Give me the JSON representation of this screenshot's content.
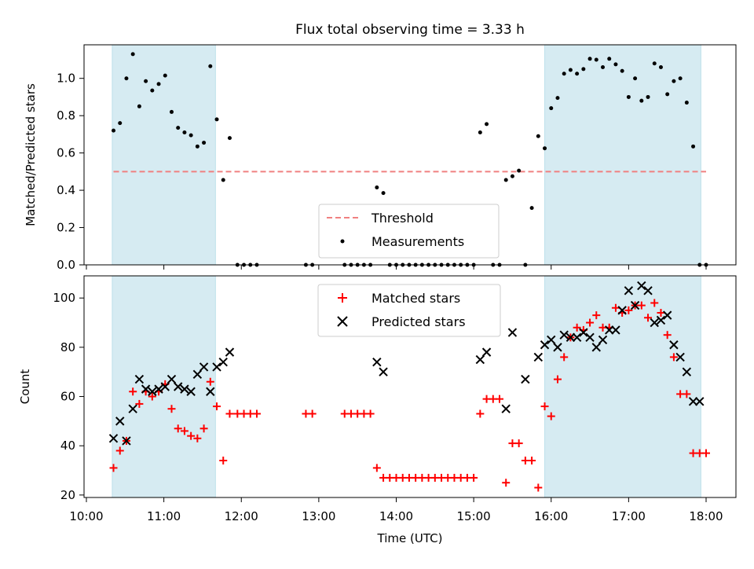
{
  "title": "Flux total observing time = 3.33 h",
  "colors": {
    "shade": "#add8e6",
    "threshold": "#f08080",
    "measurement": "#000000",
    "matched": "#ff0000",
    "predicted": "#000000"
  },
  "chart_data": [
    {
      "type": "scatter",
      "ylabel": "Matched/Predicted stars",
      "ylim": [
        0,
        1.18
      ],
      "yticks": [
        "0.0",
        "0.2",
        "0.4",
        "0.6",
        "0.8",
        "1.0"
      ],
      "legend_placement": "lower-center",
      "threshold": {
        "name": "Threshold",
        "value": 0.5
      },
      "shaded_regions": [
        [
          "10:20",
          "11:40"
        ],
        [
          "15:55",
          "17:56"
        ]
      ],
      "series": [
        {
          "name": "Measurements",
          "x": [
            "10:21",
            "10:26",
            "10:31",
            "10:36",
            "10:41",
            "10:46",
            "10:51",
            "10:56",
            "11:01",
            "11:06",
            "11:11",
            "11:16",
            "11:21",
            "11:26",
            "11:31",
            "11:36",
            "11:41",
            "11:46",
            "11:51",
            "11:57",
            "12:02",
            "12:07",
            "12:12",
            "12:50",
            "12:55",
            "13:20",
            "13:25",
            "13:30",
            "13:35",
            "13:40",
            "13:45",
            "13:50",
            "13:55",
            "14:00",
            "14:05",
            "14:10",
            "14:15",
            "14:20",
            "14:25",
            "14:30",
            "14:35",
            "14:40",
            "14:45",
            "14:50",
            "14:55",
            "15:00",
            "15:05",
            "15:10",
            "15:15",
            "15:20",
            "15:25",
            "15:30",
            "15:35",
            "15:40",
            "15:45",
            "15:50",
            "15:55",
            "16:00",
            "16:05",
            "16:10",
            "16:15",
            "16:20",
            "16:25",
            "16:30",
            "16:35",
            "16:40",
            "16:45",
            "16:50",
            "16:55",
            "17:00",
            "17:05",
            "17:10",
            "17:15",
            "17:20",
            "17:25",
            "17:30",
            "17:35",
            "17:40",
            "17:45",
            "17:50",
            "17:55",
            "18:00"
          ],
          "y": [
            0.72,
            0.76,
            1.0,
            1.13,
            0.85,
            0.985,
            0.935,
            0.97,
            1.015,
            0.82,
            0.735,
            0.71,
            0.695,
            0.635,
            0.655,
            1.065,
            0.78,
            0.455,
            0.68,
            0,
            0,
            0,
            0,
            0,
            0,
            0,
            0,
            0,
            0,
            0,
            0.415,
            0.385,
            0,
            0,
            0,
            0,
            0,
            0,
            0,
            0,
            0,
            0,
            0,
            0,
            0,
            0,
            0.71,
            0.755,
            0,
            0,
            0.455,
            0.475,
            0.505,
            0,
            0.305,
            0.69,
            0.625,
            0.84,
            0.895,
            1.025,
            1.045,
            1.025,
            1.05,
            1.105,
            1.1,
            1.06,
            1.105,
            1.075,
            1.04,
            0.9,
            1.0,
            0.88,
            0.9,
            1.08,
            1.06,
            0.915,
            0.985,
            1.0,
            0.87,
            0.635,
            0.0,
            0.0
          ]
        }
      ]
    },
    {
      "type": "scatter",
      "ylabel": "Count",
      "xlabel": "Time (UTC)",
      "ylim": [
        19,
        109
      ],
      "yticks": [
        "20",
        "40",
        "60",
        "80",
        "100"
      ],
      "xticks": [
        "10:00",
        "11:00",
        "12:00",
        "13:00",
        "14:00",
        "15:00",
        "16:00",
        "17:00",
        "18:00"
      ],
      "legend_placement": "upper-center",
      "shaded_regions": [
        [
          "10:20",
          "11:40"
        ],
        [
          "15:55",
          "17:56"
        ]
      ],
      "series": [
        {
          "name": "Matched stars",
          "marker": "plus",
          "x": [
            "10:21",
            "10:26",
            "10:31",
            "10:36",
            "10:41",
            "10:46",
            "10:51",
            "10:56",
            "11:01",
            "11:06",
            "11:11",
            "11:16",
            "11:21",
            "11:26",
            "11:31",
            "11:36",
            "11:41",
            "11:46",
            "11:51",
            "11:57",
            "12:02",
            "12:07",
            "12:12",
            "12:50",
            "12:55",
            "13:20",
            "13:25",
            "13:30",
            "13:35",
            "13:40",
            "13:45",
            "13:50",
            "13:55",
            "14:00",
            "14:05",
            "14:10",
            "14:15",
            "14:20",
            "14:25",
            "14:30",
            "14:35",
            "14:40",
            "14:45",
            "14:50",
            "14:55",
            "15:00",
            "15:05",
            "15:10",
            "15:15",
            "15:20",
            "15:25",
            "15:30",
            "15:35",
            "15:40",
            "15:45",
            "15:50",
            "15:55",
            "16:00",
            "16:05",
            "16:10",
            "16:15",
            "16:20",
            "16:25",
            "16:30",
            "16:35",
            "16:40",
            "16:45",
            "16:50",
            "16:55",
            "17:00",
            "17:05",
            "17:10",
            "17:15",
            "17:20",
            "17:25",
            "17:30",
            "17:35",
            "17:40",
            "17:45",
            "17:50",
            "17:55",
            "18:00"
          ],
          "y": [
            31,
            38,
            42,
            62,
            57,
            62,
            60,
            62,
            65,
            55,
            47,
            46,
            44,
            43,
            47,
            66,
            56,
            34,
            53,
            53,
            53,
            53,
            53,
            53,
            53,
            53,
            53,
            53,
            53,
            53,
            31,
            27,
            27,
            27,
            27,
            27,
            27,
            27,
            27,
            27,
            27,
            27,
            27,
            27,
            27,
            27,
            53,
            59,
            59,
            59,
            25,
            41,
            41,
            34,
            34,
            23,
            56,
            52,
            67,
            76,
            84,
            88,
            87,
            90,
            93,
            88,
            88,
            96,
            94,
            95,
            97,
            97,
            92,
            98,
            94,
            85,
            76,
            61,
            61,
            37,
            37,
            37
          ]
        },
        {
          "name": "Predicted stars",
          "marker": "x",
          "x": [
            "10:21",
            "10:26",
            "10:31",
            "10:36",
            "10:41",
            "10:46",
            "10:51",
            "10:56",
            "11:01",
            "11:06",
            "11:11",
            "11:16",
            "11:21",
            "11:26",
            "11:31",
            "11:36",
            "11:41",
            "11:46",
            "11:51",
            "13:45",
            "13:50",
            "15:05",
            "15:10",
            "15:25",
            "15:30",
            "15:40",
            "15:50",
            "15:55",
            "16:00",
            "16:05",
            "16:10",
            "16:15",
            "16:20",
            "16:25",
            "16:30",
            "16:35",
            "16:40",
            "16:45",
            "16:50",
            "16:55",
            "17:00",
            "17:05",
            "17:10",
            "17:15",
            "17:20",
            "17:25",
            "17:30",
            "17:35",
            "17:40",
            "17:45",
            "17:50",
            "17:55"
          ],
          "y": [
            43,
            50,
            42,
            55,
            67,
            63,
            62,
            63,
            64,
            67,
            64,
            63,
            62,
            69,
            72,
            62,
            72,
            74,
            78,
            74,
            70,
            75,
            78,
            55,
            86,
            67,
            76,
            81,
            83,
            80,
            85,
            84,
            84,
            86,
            84,
            80,
            83,
            87,
            87,
            95,
            103,
            97,
            105,
            103,
            90,
            91,
            93,
            81,
            76,
            70,
            58,
            58
          ]
        }
      ]
    }
  ]
}
